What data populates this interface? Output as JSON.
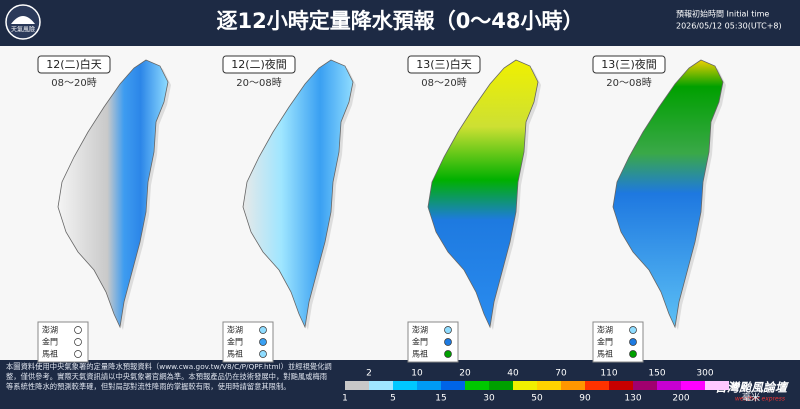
{
  "header": {
    "title": "逐12小時定量降水預報（0～48小時）",
    "logo": "天氣風險",
    "init_label": "預報初始時間 Initial time",
    "init_time": "2026/05/12  05:30(UTC+8)"
  },
  "panels": [
    {
      "title": "12(二)白天",
      "hours": "08～20時",
      "islands": [
        "澎湖",
        "金門",
        "馬祖"
      ]
    },
    {
      "title": "12(二)夜間",
      "hours": "20～08時",
      "islands": [
        "澎湖",
        "金門",
        "馬祖"
      ]
    },
    {
      "title": "13(三)白天",
      "hours": "08～20時",
      "islands": [
        "澎湖",
        "金門",
        "馬祖"
      ]
    },
    {
      "title": "13(三)夜間",
      "hours": "20～08時",
      "islands": [
        "澎湖",
        "金門",
        "馬祖"
      ]
    }
  ],
  "legend": {
    "upper": [
      2,
      10,
      20,
      40,
      70,
      110,
      150,
      300
    ],
    "lower": [
      1,
      5,
      15,
      30,
      50,
      90,
      130,
      200
    ],
    "unit": "毫米"
  },
  "footer": {
    "note": "本圖資料使用中央氣象署的定量降水預報資料（www.cwa.gov.tw/V8/C/P/QPF.html）並經視覺化調整，僅供參考。實際天氣資訊請以中央氣象署官網為準。本預報產品仍在技術發展中，對颱風或梅雨等系統性降水的預測較準確，但對局部對流性降雨的掌握較有限，使用時請留意其限制。",
    "brand": "台灣颱風論壇",
    "brand_sub": "weather express"
  }
}
